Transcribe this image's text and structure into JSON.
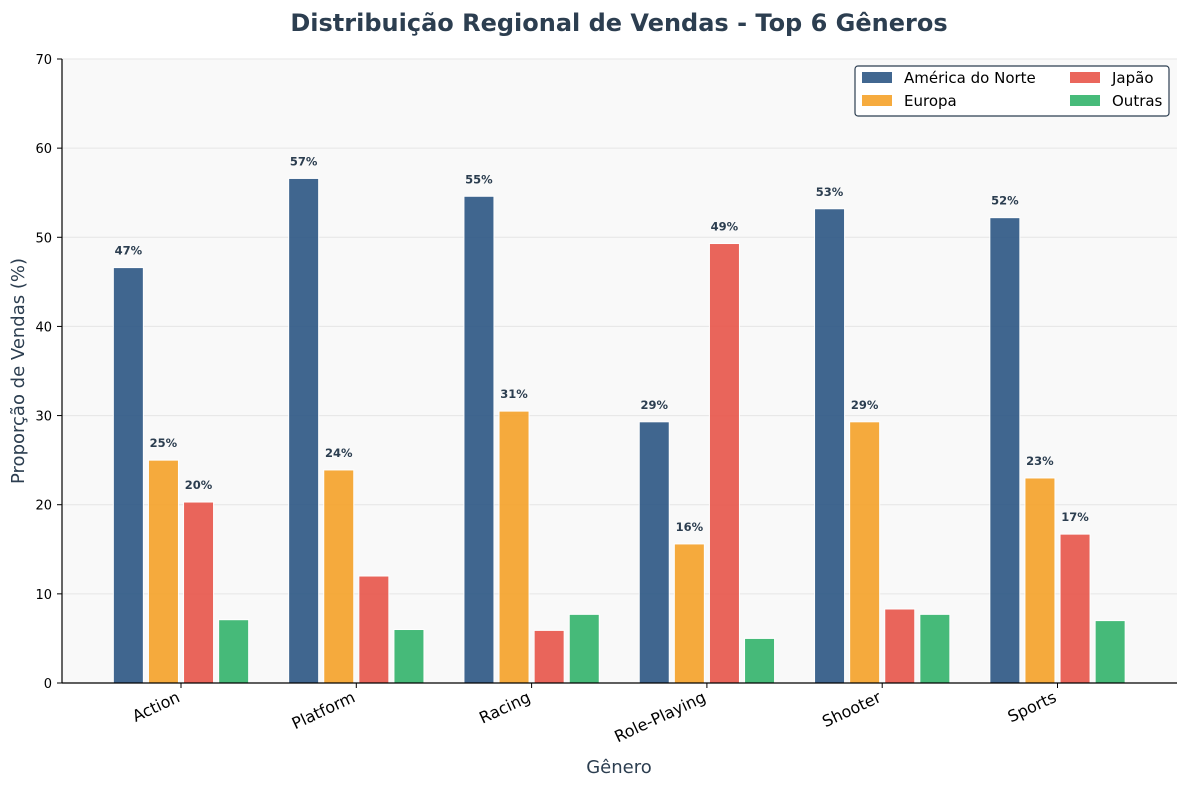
{
  "chart_data": {
    "type": "bar",
    "title": "Distribuição Regional de Vendas - Top 6 Gêneros",
    "xlabel": "Gênero",
    "ylabel": "Proporção de Vendas (%)",
    "ylim": [
      0,
      70
    ],
    "yticks": [
      0,
      10,
      20,
      30,
      40,
      50,
      60,
      70
    ],
    "grid": "horizontal",
    "legend_position": "top-right",
    "categories": [
      "Action",
      "Platform",
      "Racing",
      "Role-Playing",
      "Shooter",
      "Sports"
    ],
    "series": [
      {
        "name": "América do Norte",
        "color": "#2c5784",
        "values": [
          46.6,
          56.6,
          54.6,
          29.3,
          53.2,
          52.2
        ],
        "labels": [
          "47%",
          "57%",
          "55%",
          "29%",
          "53%",
          "52%"
        ]
      },
      {
        "name": "Europa",
        "color": "#f5a229",
        "values": [
          25.0,
          23.9,
          30.5,
          15.6,
          29.3,
          23.0
        ],
        "labels": [
          "25%",
          "24%",
          "31%",
          "16%",
          "29%",
          "23%"
        ]
      },
      {
        "name": "Japão",
        "color": "#e8554a",
        "values": [
          20.3,
          12.0,
          5.9,
          49.3,
          8.3,
          16.7
        ],
        "labels": [
          "20%",
          "",
          "",
          "49%",
          "",
          "17%"
        ]
      },
      {
        "name": "Outras",
        "color": "#33b46c",
        "values": [
          7.1,
          6.0,
          7.7,
          5.0,
          7.7,
          7.0
        ],
        "labels": [
          "",
          "",
          "",
          "",
          "",
          ""
        ]
      }
    ]
  }
}
